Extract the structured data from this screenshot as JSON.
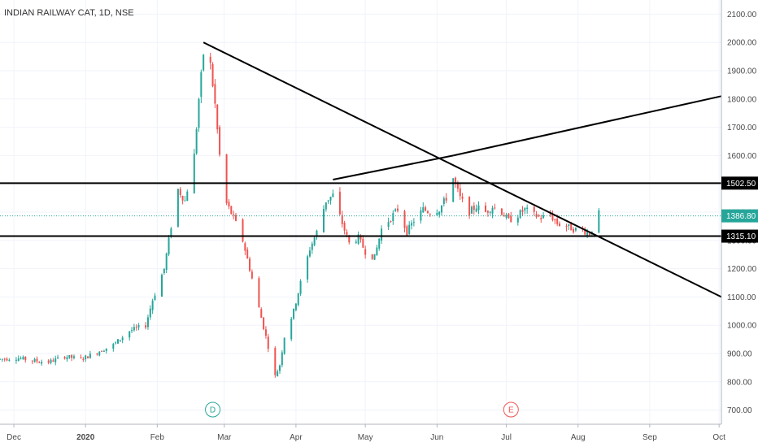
{
  "chart_data": {
    "type": "candlestick",
    "title": "INDIAN RAILWAY CAT, 1D, NSE",
    "ylim": [
      650,
      2150
    ],
    "yticks": [
      700,
      800,
      900,
      1000,
      1100,
      1200,
      1300,
      1400,
      1500,
      1600,
      1700,
      1800,
      1900,
      2000,
      2100
    ],
    "ytick_labels": [
      "700.00",
      "800.00",
      "900.00",
      "1000.00",
      "1100.00",
      "1200.00",
      "1300.00",
      "1400.00",
      "1500.00",
      "1600.00",
      "1700.00",
      "1800.00",
      "1900.00",
      "2000.00",
      "2100.00"
    ],
    "xlim": [
      "2019-11-25",
      "2020-10-02"
    ],
    "xticks": [
      {
        "date": "2019-12-01",
        "label": "Dec",
        "bold": false
      },
      {
        "date": "2020-01-01",
        "label": "2020",
        "bold": true
      },
      {
        "date": "2020-02-01",
        "label": "Feb",
        "bold": false
      },
      {
        "date": "2020-03-01",
        "label": "Mar",
        "bold": false
      },
      {
        "date": "2020-04-01",
        "label": "Apr",
        "bold": false
      },
      {
        "date": "2020-05-01",
        "label": "May",
        "bold": false
      },
      {
        "date": "2020-06-01",
        "label": "Jun",
        "bold": false
      },
      {
        "date": "2020-07-01",
        "label": "Jul",
        "bold": false
      },
      {
        "date": "2020-08-01",
        "label": "Aug",
        "bold": false
      },
      {
        "date": "2020-09-01",
        "label": "Sep",
        "bold": false
      },
      {
        "date": "2020-10-01",
        "label": "Oct",
        "bold": false
      }
    ],
    "price_points": [
      [
        "2019-11-25",
        880
      ],
      [
        "2019-12-02",
        885
      ],
      [
        "2019-12-09",
        875
      ],
      [
        "2019-12-16",
        870
      ],
      [
        "2019-12-23",
        890
      ],
      [
        "2019-12-30",
        880
      ],
      [
        "2020-01-06",
        905
      ],
      [
        "2020-01-13",
        930
      ],
      [
        "2020-01-20",
        980
      ],
      [
        "2020-01-27",
        1000
      ],
      [
        "2020-01-30",
        1090
      ],
      [
        "2020-02-04",
        1200
      ],
      [
        "2020-02-07",
        1350
      ],
      [
        "2020-02-10",
        1480
      ],
      [
        "2020-02-13",
        1440
      ],
      [
        "2020-02-17",
        1600
      ],
      [
        "2020-02-19",
        1800
      ],
      [
        "2020-02-21",
        1960
      ],
      [
        "2020-02-24",
        1920
      ],
      [
        "2020-02-26",
        1780
      ],
      [
        "2020-02-28",
        1600
      ],
      [
        "2020-03-02",
        1430
      ],
      [
        "2020-03-05",
        1380
      ],
      [
        "2020-03-09",
        1300
      ],
      [
        "2020-03-12",
        1200
      ],
      [
        "2020-03-16",
        1060
      ],
      [
        "2020-03-19",
        960
      ],
      [
        "2020-03-23",
        820
      ],
      [
        "2020-03-25",
        860
      ],
      [
        "2020-03-27",
        960
      ],
      [
        "2020-03-31",
        1050
      ],
      [
        "2020-04-03",
        1150
      ],
      [
        "2020-04-07",
        1270
      ],
      [
        "2020-04-10",
        1330
      ],
      [
        "2020-04-14",
        1440
      ],
      [
        "2020-04-17",
        1460
      ],
      [
        "2020-04-21",
        1360
      ],
      [
        "2020-04-24",
        1290
      ],
      [
        "2020-04-28",
        1310
      ],
      [
        "2020-05-01",
        1260
      ],
      [
        "2020-05-05",
        1240
      ],
      [
        "2020-05-08",
        1340
      ],
      [
        "2020-05-12",
        1380
      ],
      [
        "2020-05-15",
        1410
      ],
      [
        "2020-05-19",
        1330
      ],
      [
        "2020-05-22",
        1370
      ],
      [
        "2020-05-26",
        1410
      ],
      [
        "2020-05-29",
        1400
      ],
      [
        "2020-06-02",
        1410
      ],
      [
        "2020-06-05",
        1450
      ],
      [
        "2020-06-08",
        1520
      ],
      [
        "2020-06-11",
        1450
      ],
      [
        "2020-06-15",
        1400
      ],
      [
        "2020-06-18",
        1420
      ],
      [
        "2020-06-22",
        1400
      ],
      [
        "2020-06-25",
        1420
      ],
      [
        "2020-06-29",
        1400
      ],
      [
        "2020-07-02",
        1370
      ],
      [
        "2020-07-06",
        1390
      ],
      [
        "2020-07-09",
        1410
      ],
      [
        "2020-07-13",
        1390
      ],
      [
        "2020-07-16",
        1380
      ],
      [
        "2020-07-20",
        1390
      ],
      [
        "2020-07-23",
        1360
      ],
      [
        "2020-07-27",
        1350
      ],
      [
        "2020-07-30",
        1340
      ],
      [
        "2020-08-03",
        1335
      ],
      [
        "2020-08-06",
        1325
      ],
      [
        "2020-08-07",
        1340
      ],
      [
        "2020-08-10",
        1395
      ]
    ],
    "horizontal_lines": [
      {
        "price": 1502.5,
        "label": "1502.50"
      },
      {
        "price": 1315.1,
        "label": "1315.10"
      }
    ],
    "last_price": {
      "price": 1386.8,
      "label": "1386.80",
      "color": "#26a69a"
    },
    "trend_lines": [
      {
        "from": [
          "2020-02-21",
          2000
        ],
        "to": [
          "2020-10-02",
          1100
        ]
      },
      {
        "from": [
          "2020-04-17",
          1515
        ],
        "to": [
          "2020-06-08",
          1600
        ]
      },
      {
        "from": [
          "2020-06-08",
          1600
        ],
        "to": [
          "2020-10-02",
          1810
        ]
      }
    ],
    "events": [
      {
        "date": "2020-02-25",
        "label": "D",
        "color": "#26a69a"
      },
      {
        "date": "2020-07-03",
        "label": "E",
        "color": "#ef5350"
      }
    ],
    "colors": {
      "up": "#26a69a",
      "down": "#ef5350",
      "trend": "#000000",
      "axis_text": "#4a4a4a"
    }
  }
}
